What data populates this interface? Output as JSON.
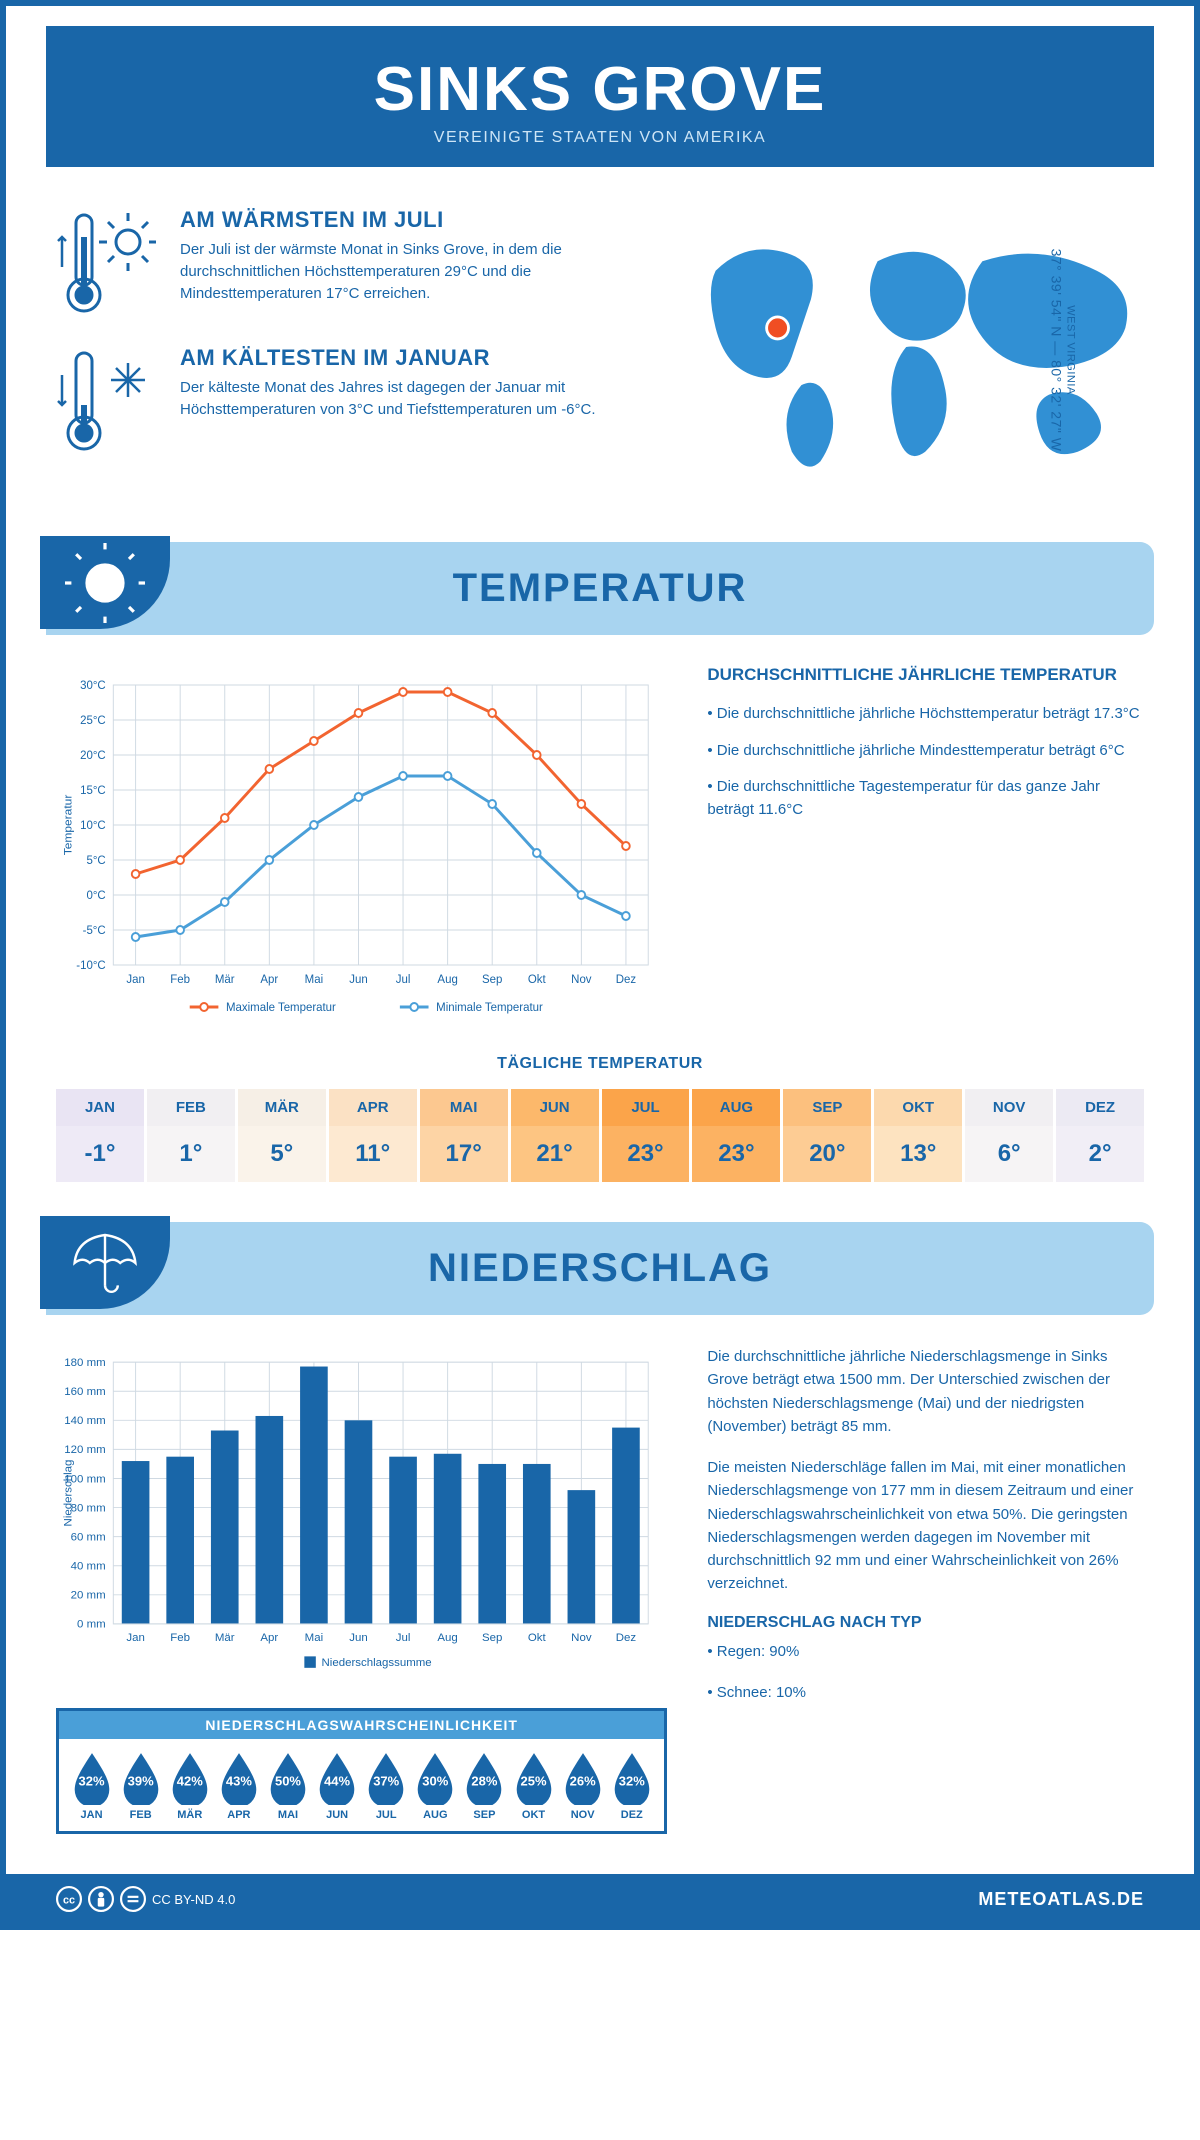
{
  "header": {
    "title": "SINKS GROVE",
    "subtitle": "VEREINIGTE STAATEN VON AMERIKA"
  },
  "coords": {
    "region": "WEST VIRGINIA",
    "value": "37° 39' 54\" N — 80° 32' 27\" W"
  },
  "facts": {
    "warm": {
      "title": "AM WÄRMSTEN IM JULI",
      "text": "Der Juli ist der wärmste Monat in Sinks Grove, in dem die durchschnittlichen Höchsttemperaturen 29°C und die Mindesttemperaturen 17°C erreichen."
    },
    "cold": {
      "title": "AM KÄLTESTEN IM JANUAR",
      "text": "Der kälteste Monat des Jahres ist dagegen der Januar mit Höchsttemperaturen von 3°C und Tiefsttemperaturen um -6°C."
    }
  },
  "sections": {
    "temperature": "TEMPERATUR",
    "precipitation": "NIEDERSCHLAG"
  },
  "temp_chart": {
    "type": "line",
    "months": [
      "Jan",
      "Feb",
      "Mär",
      "Apr",
      "Mai",
      "Jun",
      "Jul",
      "Aug",
      "Sep",
      "Okt",
      "Nov",
      "Dez"
    ],
    "max": [
      3,
      5,
      11,
      18,
      22,
      26,
      29,
      29,
      26,
      20,
      13,
      7
    ],
    "min": [
      -6,
      -5,
      -1,
      5,
      10,
      14,
      17,
      17,
      13,
      6,
      0,
      -3
    ],
    "ylim": [
      -10,
      30
    ],
    "ytick_step": 5,
    "y_label": "Temperatur",
    "y_suffix": "°C",
    "max_color": "#f26430",
    "min_color": "#4a9fd8",
    "grid_color": "#cfd9e2",
    "line_width": 3,
    "marker_radius": 4,
    "legend_max": "Maximale Temperatur",
    "legend_min": "Minimale Temperatur"
  },
  "temp_info": {
    "heading": "DURCHSCHNITTLICHE JÄHRLICHE TEMPERATUR",
    "b1": "• Die durchschnittliche jährliche Höchsttemperatur beträgt 17.3°C",
    "b2": "• Die durchschnittliche jährliche Mindesttemperatur beträgt 6°C",
    "b3": "• Die durchschnittliche Tagestemperatur für das ganze Jahr beträgt 11.6°C"
  },
  "daily_temp": {
    "title": "TÄGLICHE TEMPERATUR",
    "months": [
      "JAN",
      "FEB",
      "MÄR",
      "APR",
      "MAI",
      "JUN",
      "JUL",
      "AUG",
      "SEP",
      "OKT",
      "NOV",
      "DEZ"
    ],
    "values": [
      "-1°",
      "1°",
      "5°",
      "11°",
      "17°",
      "21°",
      "23°",
      "23°",
      "20°",
      "13°",
      "6°",
      "2°"
    ],
    "bg_top": [
      "#e9e4f3",
      "#f1eff2",
      "#f6efe6",
      "#fbe1c4",
      "#fcc890",
      "#fcb86b",
      "#fba44a",
      "#fba44a",
      "#fcc07e",
      "#fcd9ae",
      "#f1eff2",
      "#eceaf3"
    ],
    "bg_bot": [
      "#eeeaf6",
      "#f6f4f5",
      "#faf3ea",
      "#fde9d1",
      "#fdd4a5",
      "#fdc582",
      "#fcb262",
      "#fcb262",
      "#fdcc94",
      "#fde3c0",
      "#f6f4f5",
      "#f1eef6"
    ]
  },
  "precip_chart": {
    "type": "bar",
    "months": [
      "Jan",
      "Feb",
      "Mär",
      "Apr",
      "Mai",
      "Jun",
      "Jul",
      "Aug",
      "Sep",
      "Okt",
      "Nov",
      "Dez"
    ],
    "values": [
      112,
      115,
      133,
      143,
      177,
      140,
      115,
      117,
      110,
      110,
      92,
      135
    ],
    "ylim": [
      0,
      180
    ],
    "ytick_step": 20,
    "y_label": "Niederschlag",
    "y_suffix": " mm",
    "bar_color": "#1966a8",
    "grid_color": "#cfd9e2",
    "legend": "Niederschlagssumme"
  },
  "precip_text": {
    "p1": "Die durchschnittliche jährliche Niederschlagsmenge in Sinks Grove beträgt etwa 1500 mm. Der Unterschied zwischen der höchsten Niederschlagsmenge (Mai) und der niedrigsten (November) beträgt 85 mm.",
    "p2": "Die meisten Niederschläge fallen im Mai, mit einer monatlichen Niederschlagsmenge von 177 mm in diesem Zeitraum und einer Niederschlagswahrscheinlichkeit von etwa 50%. Die geringsten Niederschlagsmengen werden dagegen im November mit durchschnittlich 92 mm und einer Wahrscheinlichkeit von 26% verzeichnet.",
    "type_heading": "NIEDERSCHLAG NACH TYP",
    "type_rain": "• Regen: 90%",
    "type_snow": "• Schnee: 10%"
  },
  "precip_prob": {
    "title": "NIEDERSCHLAGSWAHRSCHEINLICHKEIT",
    "months": [
      "JAN",
      "FEB",
      "MÄR",
      "APR",
      "MAI",
      "JUN",
      "JUL",
      "AUG",
      "SEP",
      "OKT",
      "NOV",
      "DEZ"
    ],
    "values": [
      "32%",
      "39%",
      "42%",
      "43%",
      "50%",
      "44%",
      "37%",
      "30%",
      "28%",
      "25%",
      "26%",
      "32%"
    ],
    "drop_color": "#1966a8"
  },
  "footer": {
    "license": "CC BY-ND 4.0",
    "site": "METEOATLAS.DE"
  }
}
